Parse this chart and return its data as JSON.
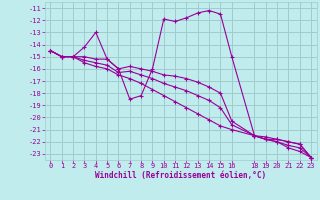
{
  "xlabel": "Windchill (Refroidissement éolien,°C)",
  "background_color": "#c0eced",
  "grid_color": "#a0ccce",
  "line_color": "#990099",
  "xlim": [
    -0.5,
    23.5
  ],
  "ylim": [
    -23.5,
    -10.5
  ],
  "xticks": [
    0,
    1,
    2,
    3,
    4,
    5,
    6,
    7,
    8,
    9,
    10,
    11,
    12,
    13,
    14,
    15,
    16,
    18,
    19,
    20,
    21,
    22,
    23
  ],
  "yticks": [
    -11,
    -12,
    -13,
    -14,
    -15,
    -16,
    -17,
    -18,
    -19,
    -20,
    -21,
    -22,
    -23
  ],
  "series": [
    {
      "x": [
        0,
        1,
        2,
        3,
        4,
        5,
        6,
        7,
        8,
        9,
        10,
        11,
        12,
        13,
        14,
        15,
        16,
        18,
        19,
        20,
        21,
        22,
        23
      ],
      "y": [
        -14.5,
        -15.0,
        -15.0,
        -14.2,
        -13.0,
        -15.2,
        -16.0,
        -18.5,
        -18.2,
        -16.0,
        -11.9,
        -12.1,
        -11.8,
        -11.4,
        -11.2,
        -11.5,
        -15.0,
        -21.5,
        -21.8,
        -21.8,
        -22.0,
        -22.2,
        -23.3
      ]
    },
    {
      "x": [
        0,
        1,
        2,
        3,
        4,
        5,
        6,
        7,
        8,
        9,
        10,
        11,
        12,
        13,
        14,
        15,
        16,
        18,
        19,
        20,
        21,
        22,
        23
      ],
      "y": [
        -14.5,
        -15.0,
        -15.0,
        -15.0,
        -15.2,
        -15.2,
        -16.0,
        -15.8,
        -16.0,
        -16.2,
        -16.5,
        -16.6,
        -16.8,
        -17.1,
        -17.5,
        -18.0,
        -20.3,
        -21.5,
        -21.6,
        -21.8,
        -22.0,
        -22.2,
        -23.3
      ]
    },
    {
      "x": [
        0,
        1,
        2,
        3,
        4,
        5,
        6,
        7,
        8,
        9,
        10,
        11,
        12,
        13,
        14,
        15,
        16,
        18,
        19,
        20,
        21,
        22,
        23
      ],
      "y": [
        -14.5,
        -15.0,
        -15.0,
        -15.3,
        -15.5,
        -15.7,
        -16.3,
        -16.2,
        -16.5,
        -16.8,
        -17.2,
        -17.5,
        -17.8,
        -18.2,
        -18.6,
        -19.2,
        -20.6,
        -21.5,
        -21.8,
        -22.0,
        -22.3,
        -22.5,
        -23.3
      ]
    },
    {
      "x": [
        0,
        1,
        2,
        3,
        4,
        5,
        6,
        7,
        8,
        9,
        10,
        11,
        12,
        13,
        14,
        15,
        16,
        18,
        19,
        20,
        21,
        22,
        23
      ],
      "y": [
        -14.5,
        -15.0,
        -15.0,
        -15.5,
        -15.8,
        -16.0,
        -16.5,
        -16.8,
        -17.2,
        -17.7,
        -18.2,
        -18.7,
        -19.2,
        -19.7,
        -20.2,
        -20.7,
        -21.0,
        -21.5,
        -21.8,
        -22.0,
        -22.5,
        -22.8,
        -23.3
      ]
    }
  ]
}
